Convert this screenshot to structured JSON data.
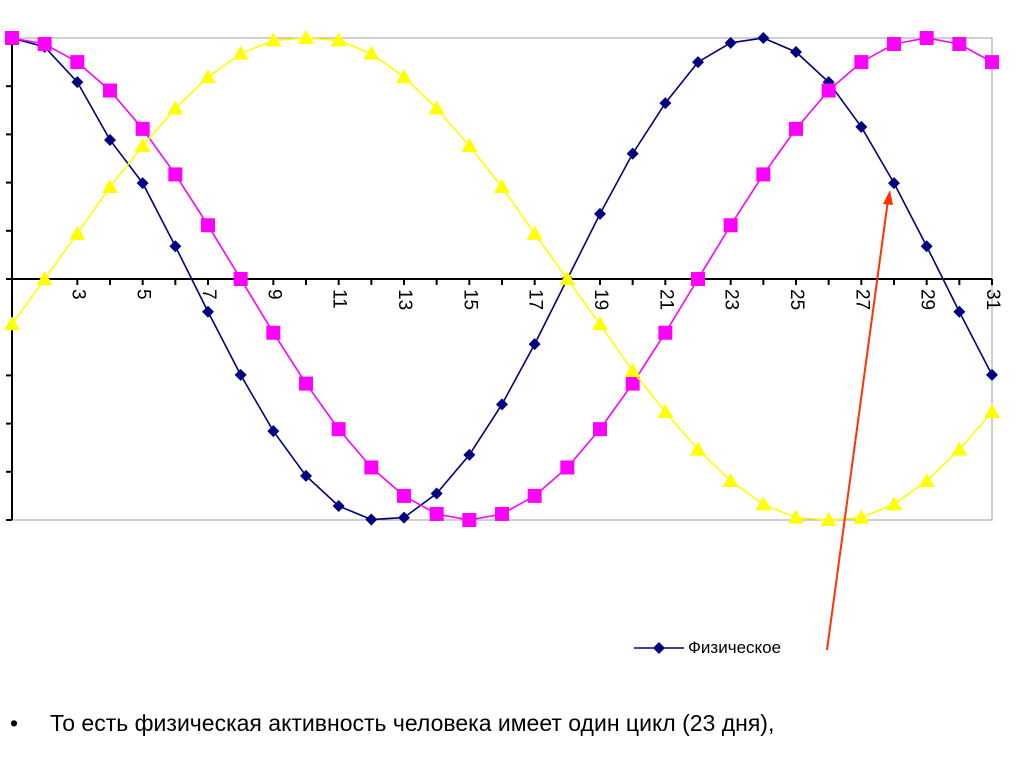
{
  "chart_data": {
    "type": "line",
    "x": [
      1,
      2,
      3,
      4,
      5,
      6,
      7,
      8,
      9,
      10,
      11,
      12,
      13,
      14,
      15,
      16,
      17,
      18,
      19,
      20,
      21,
      22,
      23,
      24,
      25,
      26,
      27,
      28,
      29,
      30,
      31
    ],
    "tick_labels": [
      "3",
      "5",
      "7",
      "9",
      "11",
      "13",
      "15",
      "17",
      "19",
      "21",
      "23",
      "25",
      "27",
      "29",
      "31"
    ],
    "ylim": [
      -1,
      1
    ],
    "series": [
      {
        "name": "Физическое",
        "color": "#000080",
        "marker": "diamond",
        "values": [
          1.0,
          0.963,
          0.817,
          0.577,
          0.398,
          0.136,
          -0.136,
          -0.398,
          -0.631,
          -0.817,
          -0.942,
          -0.998,
          -0.99,
          -0.89,
          -0.73,
          -0.52,
          -0.27,
          0.0,
          0.27,
          0.52,
          0.73,
          0.9,
          0.98,
          1.0,
          0.942,
          0.817,
          0.631,
          0.398,
          0.136,
          -0.136,
          -0.398
        ]
      },
      {
        "color": "#ff00ff",
        "marker": "square",
        "values": [
          1.0,
          0.975,
          0.9,
          0.782,
          0.623,
          0.434,
          0.223,
          0.0,
          -0.223,
          -0.434,
          -0.623,
          -0.782,
          -0.9,
          -0.975,
          -1.0,
          -0.975,
          -0.9,
          -0.782,
          -0.623,
          -0.434,
          -0.223,
          0.0,
          0.223,
          0.434,
          0.623,
          0.782,
          0.9,
          0.975,
          1.0,
          0.975,
          0.9
        ]
      },
      {
        "color": "#ffff00",
        "marker": "triangle",
        "values": [
          -0.188,
          0.0,
          0.188,
          0.382,
          0.552,
          0.708,
          0.838,
          0.935,
          0.99,
          1.0,
          0.99,
          0.935,
          0.838,
          0.708,
          0.552,
          0.382,
          0.188,
          0.0,
          -0.188,
          -0.382,
          -0.552,
          -0.708,
          -0.838,
          -0.935,
          -0.99,
          -1.0,
          -0.99,
          -0.935,
          -0.838,
          -0.708,
          -0.552
        ]
      }
    ],
    "annotation_arrow_color": "#ff3300"
  },
  "legend": {
    "label": "Физическое"
  },
  "bullet": {
    "symbol": "•",
    "text": "То есть физическая активность человека имеет один цикл (23 дня),"
  }
}
